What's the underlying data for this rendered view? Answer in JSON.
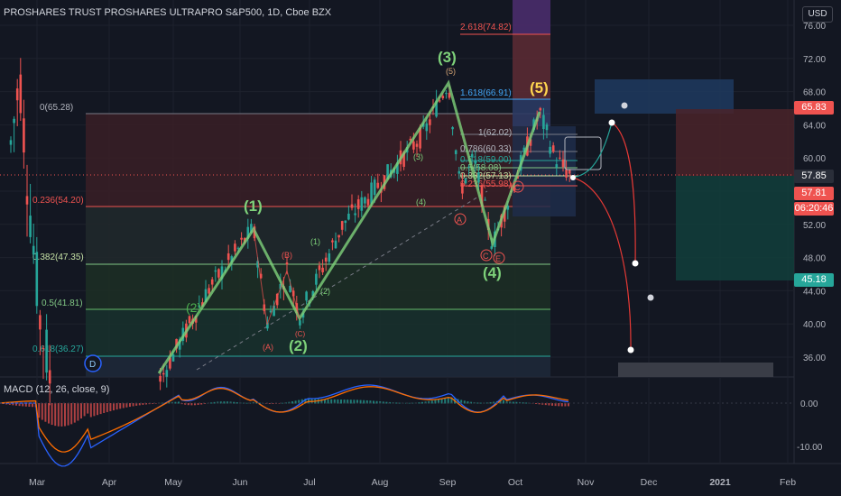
{
  "header": {
    "title": "PROSHARES TRUST PROSHARES ULTRAPRO S&P500, 1D, Cboe BZX",
    "currency": "USD"
  },
  "colors": {
    "background": "#131722",
    "up": "#26a69a",
    "down": "#ef5350",
    "wave": "#7ed27a",
    "grid": "#1e222d",
    "projection_red": "#e53935"
  },
  "price_tags": {
    "upper_target": "65.83",
    "last_price": "57.85",
    "close_price": "57.81",
    "countdown": "06:20:46",
    "lower_target": "45.18"
  },
  "fib_labels": [
    "0(65.28)",
    "0.236(54.20)",
    "0.382(47.35)",
    "0.5(41.81)",
    "0.618(36.27)"
  ],
  "fib_ext_labels": [
    "2.618(74.82)",
    "1.618(66.91)",
    "1(62.02)",
    "0.786(60.33)",
    "0.618(59.00)",
    "0.5(58.08)",
    "0.382(57.13)",
    "0.236(55.98)"
  ],
  "wave_labels": {
    "w1": "(1)",
    "w2": "(2)",
    "w3": "(3)",
    "w4": "(4)",
    "w5": "(5)",
    "w2_prior": "(2)",
    "w3_small": "(5)",
    "sub_1": "(1)",
    "sub_2": "(2)",
    "sub_3": "(3)",
    "sub_4": "(4)",
    "a1": "(A)",
    "b1": "(B)",
    "c1": "(C)",
    "a2": "A",
    "c2": "C",
    "e2": "E",
    "c3": "C",
    "d_marker": "D"
  },
  "macd": {
    "title": "MACD (12, 26, close, 9)"
  },
  "chart_data": {
    "type": "candlestick",
    "title": "PROSHARES TRUST PROSHARES ULTRAPRO S&P500, 1D, Cboe BZX",
    "y_ticks": [
      76.0,
      72.0,
      68.0,
      64.0,
      60.0,
      56.0,
      52.0,
      48.0,
      44.0,
      40.0,
      36.0
    ],
    "y_tick_labels": [
      "76.00",
      "72.00",
      "68.00",
      "64.00",
      "60.00",
      "56.00",
      "52.00",
      "48.00",
      "44.00",
      "40.00",
      "36.00"
    ],
    "x_tick_labels": [
      "Mar",
      "Apr",
      "May",
      "Jun",
      "Jul",
      "Aug",
      "Sep",
      "Oct",
      "Nov",
      "Dec",
      "2021",
      "Feb"
    ],
    "macd_ticks": [
      "0.00",
      "-10.00"
    ],
    "fib_levels": [
      {
        "ratio": "0",
        "value": 65.28
      },
      {
        "ratio": "0.236",
        "value": 54.2
      },
      {
        "ratio": "0.382",
        "value": 47.35
      },
      {
        "ratio": "0.5",
        "value": 41.81
      },
      {
        "ratio": "0.618",
        "value": 36.27
      }
    ],
    "wave_points": [
      {
        "label": "start",
        "value": 33.0
      },
      {
        "label": "(1)",
        "value": 51.5
      },
      {
        "label": "(2)",
        "value": 41.0
      },
      {
        "label": "(3)",
        "value": 69.3
      },
      {
        "label": "(4)",
        "value": 49.5
      },
      {
        "label": "(5)",
        "value": 65.5
      }
    ],
    "last_price": 57.85
  }
}
